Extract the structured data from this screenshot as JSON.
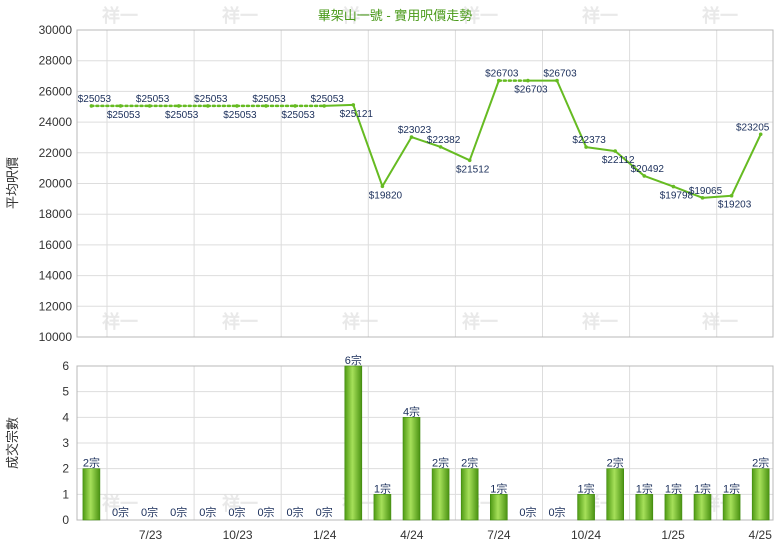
{
  "chart_data": [
    {
      "type": "line",
      "title": "畢架山一號 - 實用呎價走勢",
      "ylabel": "平均呎價",
      "ylim": [
        10000,
        30000
      ],
      "yticks": [
        10000,
        12000,
        14000,
        16000,
        18000,
        20000,
        22000,
        24000,
        26000,
        28000,
        30000
      ],
      "x_tick_labels": [
        "7/23",
        "10/23",
        "1/24",
        "4/24",
        "7/24",
        "10/24",
        "1/25",
        "4/25"
      ],
      "series": [
        {
          "values": [
            25053,
            25053,
            25053,
            25053,
            25053,
            25053,
            25053,
            25053,
            25053,
            25121,
            19820,
            23023,
            22382,
            21512,
            26703,
            26703,
            26703,
            22373,
            22112,
            20492,
            19798,
            19065,
            19203,
            23205
          ],
          "labels": [
            "$25053",
            "$25053",
            "$25053",
            "$25053",
            "$25053",
            "$25053",
            "$25053",
            "$25053",
            "$25053",
            "$25121",
            "$19820",
            "$23023",
            "$22382",
            "$21512",
            "$26703",
            "$26703",
            "$26703",
            "$22373",
            "$22112",
            "$20492",
            "$19798",
            "$19065",
            "$19203",
            "$23205"
          ],
          "estimated": [
            false,
            true,
            true,
            true,
            true,
            true,
            true,
            true,
            true,
            false,
            false,
            false,
            false,
            false,
            false,
            true,
            false,
            false,
            false,
            false,
            false,
            false,
            false,
            false
          ]
        }
      ],
      "line_color": "#66bb22",
      "grid": true
    },
    {
      "type": "bar",
      "ylabel": "成交宗數",
      "ylim": [
        0,
        6
      ],
      "yticks": [
        0,
        1,
        2,
        3,
        4,
        5,
        6
      ],
      "x_tick_labels": [
        "7/23",
        "10/23",
        "1/24",
        "4/24",
        "7/24",
        "10/24",
        "1/25",
        "4/25"
      ],
      "values": [
        2,
        0,
        0,
        0,
        0,
        0,
        0,
        0,
        0,
        6,
        1,
        4,
        2,
        2,
        1,
        0,
        0,
        1,
        2,
        1,
        1,
        1,
        1,
        2
      ],
      "labels": [
        "2宗",
        "0宗",
        "0宗",
        "0宗",
        "0宗",
        "0宗",
        "0宗",
        "0宗",
        "0宗",
        "6宗",
        "1宗",
        "4宗",
        "2宗",
        "2宗",
        "1宗",
        "0宗",
        "0宗",
        "1宗",
        "2宗",
        "1宗",
        "1宗",
        "1宗",
        "1宗",
        "2宗"
      ],
      "bar_color": "#66bb22",
      "grid": true
    }
  ],
  "watermark_text": "祥一"
}
